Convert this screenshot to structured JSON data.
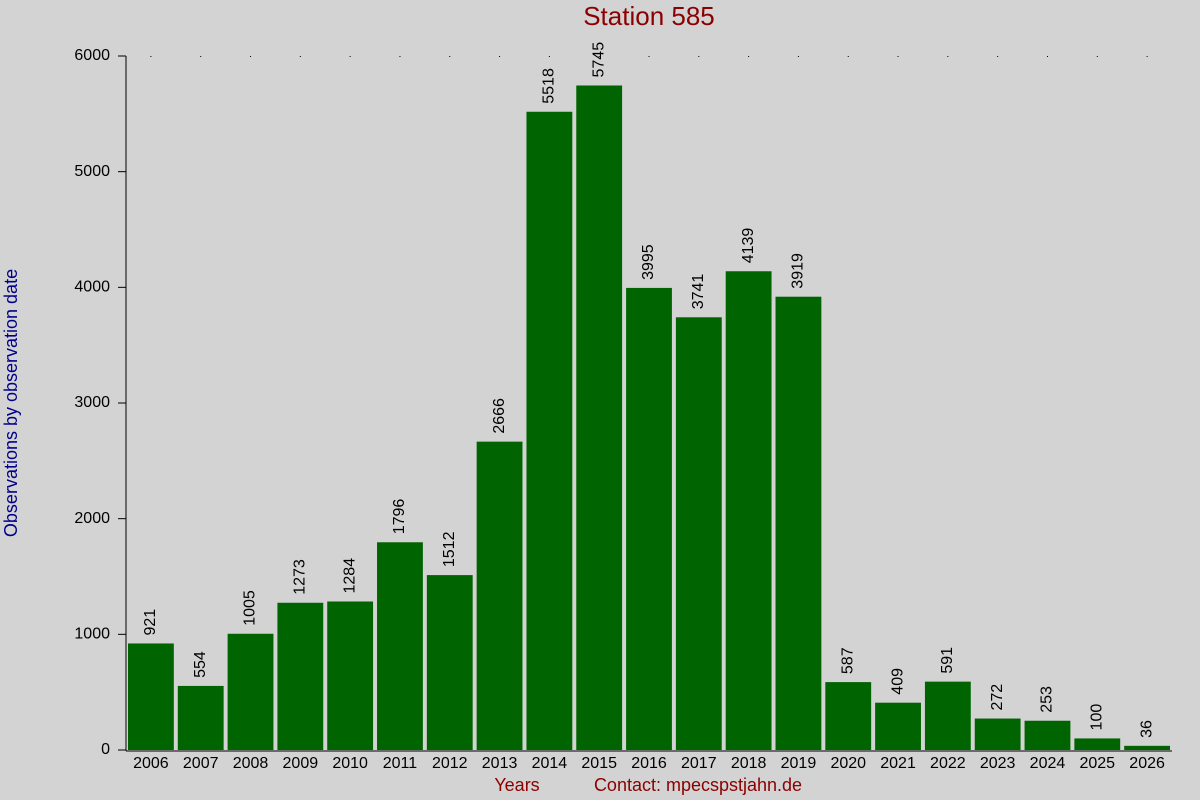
{
  "chart_data": {
    "type": "bar",
    "title": "Station 585",
    "y_label": "Observations by observation date",
    "x_label": "Years",
    "contact": "Contact: mpecspstjahn.de",
    "categories": [
      "2006",
      "2007",
      "2008",
      "2009",
      "2010",
      "2011",
      "2012",
      "2013",
      "2014",
      "2015",
      "2016",
      "2017",
      "2018",
      "2019",
      "2020",
      "2021",
      "2022",
      "2023",
      "2024",
      "2025",
      "2026"
    ],
    "values": [
      921,
      554,
      1005,
      1273,
      1284,
      1796,
      1512,
      2666,
      5518,
      5745,
      3995,
      3741,
      4139,
      3919,
      587,
      409,
      591,
      272,
      253,
      100,
      36
    ],
    "color": "#006400",
    "ylim": [
      0,
      6000
    ],
    "yticks": [
      0,
      1000,
      2000,
      3000,
      4000,
      5000,
      6000
    ]
  }
}
